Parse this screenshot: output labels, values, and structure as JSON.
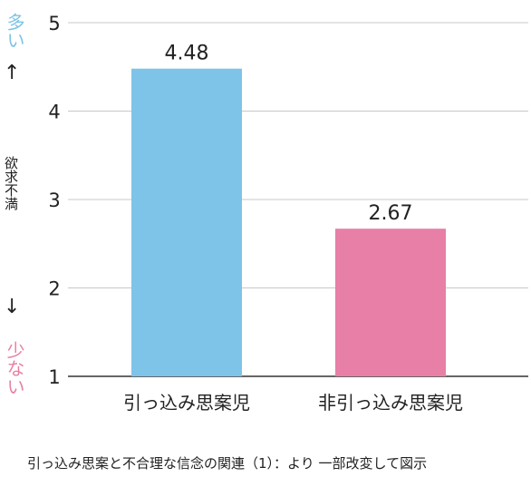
{
  "side_labels": {
    "top": "多い",
    "up_arrow": "↑",
    "middle": "欲求不満",
    "down_arrow": "↓",
    "bottom": "少ない"
  },
  "caption": "引っ込み思案と不合理な信念の関連（1）：より 一部改変して図示",
  "chart_data": {
    "type": "bar",
    "categories": [
      "引っ込み思案児",
      "非引っ込み思案児"
    ],
    "values": [
      4.48,
      2.67
    ],
    "value_labels": [
      "4.48",
      "2.67"
    ],
    "colors": [
      "#7ec3e8",
      "#e87fa6"
    ],
    "ylim": [
      1,
      5
    ],
    "yticks": [
      "1",
      "2",
      "3",
      "4",
      "5"
    ],
    "grid": true,
    "title": "",
    "xlabel": "",
    "ylabel": ""
  },
  "colors": {
    "many": "#7ec3e8",
    "few": "#e87fa6",
    "grid": "#c8c8c8",
    "axis": "#333333"
  }
}
